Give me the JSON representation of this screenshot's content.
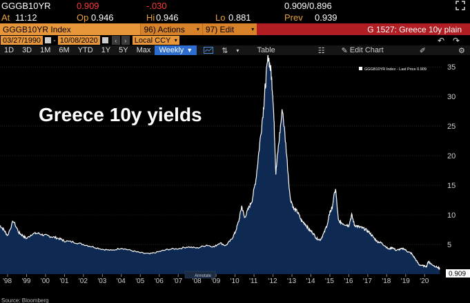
{
  "quote": {
    "ticker": "GGGB10YR",
    "last": "0.909",
    "change": "-.030",
    "bid_ask": "0.909/0.896",
    "time_label": "At",
    "time": "11:12",
    "open_label": "Op",
    "open": "0.946",
    "high_label": "Hi",
    "high": "0.946",
    "low_label": "Lo",
    "low": "0.881",
    "prev_label": "Prev",
    "prev": "0.939"
  },
  "toolbar": {
    "security": "GGGB10YR Index",
    "actions": "96) Actions",
    "edit": "97) Edit",
    "page_title": "G 1527: Greece 10y plain"
  },
  "range": {
    "start": "03/27/1990",
    "end": "10/08/2020",
    "currency": "Local CCY"
  },
  "tabs": [
    "1D",
    "3D",
    "1M",
    "6M",
    "YTD",
    "1Y",
    "5Y",
    "Max"
  ],
  "period": "Weekly",
  "tools": {
    "table": "Table",
    "edit_chart": "Edit Chart"
  },
  "colors": {
    "accent": "#e8963a",
    "title_red": "#b01e24",
    "series_fill": "#0e2a52",
    "line": "#ffffff"
  },
  "chart_data": {
    "type": "area",
    "title": "Greece 10y yields",
    "legend": "GGGB10YR Index - Last Price 0.909",
    "legend_position": "top-right",
    "annotation": "Annotate",
    "last_label": "0.909",
    "x_ticks": [
      "'98",
      "'99",
      "'00",
      "'01",
      "'02",
      "'03",
      "'04",
      "'05",
      "'06",
      "'07",
      "'08",
      "'09",
      "'10",
      "'11",
      "'12",
      "'13",
      "'14",
      "'15",
      "'16",
      "'17",
      "'18",
      "'19",
      "'20"
    ],
    "y_ticks": [
      5,
      10,
      15,
      20,
      25,
      30,
      35
    ],
    "ylim": [
      0,
      37
    ],
    "xlim": [
      1997.6,
      2020.9
    ],
    "x": [
      1997.6,
      1997.8,
      1998.0,
      1998.3,
      1998.6,
      1998.8,
      1999.0,
      1999.3,
      1999.6,
      1999.9,
      2000.2,
      2000.5,
      2000.8,
      2001.0,
      2001.5,
      2002.0,
      2002.5,
      2003.0,
      2003.5,
      2004.0,
      2004.5,
      2005.0,
      2005.5,
      2006.0,
      2006.5,
      2007.0,
      2007.5,
      2008.0,
      2008.5,
      2008.9,
      2009.2,
      2009.5,
      2009.8,
      2010.0,
      2010.2,
      2010.35,
      2010.5,
      2010.7,
      2010.9,
      2011.1,
      2011.3,
      2011.5,
      2011.6,
      2011.75,
      2011.9,
      2012.0,
      2012.1,
      2012.15,
      2012.3,
      2012.5,
      2012.7,
      2012.9,
      2013.1,
      2013.3,
      2013.5,
      2013.7,
      2013.9,
      2014.1,
      2014.3,
      2014.5,
      2014.7,
      2014.9,
      2015.0,
      2015.1,
      2015.3,
      2015.45,
      2015.6,
      2015.8,
      2016.0,
      2016.15,
      2016.3,
      2016.5,
      2016.7,
      2016.9,
      2017.1,
      2017.3,
      2017.5,
      2017.7,
      2017.9,
      2018.1,
      2018.3,
      2018.5,
      2018.7,
      2018.9,
      2019.1,
      2019.3,
      2019.5,
      2019.7,
      2019.9,
      2020.1,
      2020.2,
      2020.3,
      2020.5,
      2020.7,
      2020.8
    ],
    "values": [
      8.2,
      7.5,
      6.5,
      9.0,
      7.0,
      6.5,
      6.0,
      6.8,
      6.9,
      6.6,
      6.4,
      6.2,
      5.9,
      5.6,
      5.4,
      5.0,
      4.6,
      4.2,
      4.0,
      4.4,
      4.0,
      3.6,
      3.4,
      3.8,
      4.2,
      4.3,
      4.6,
      4.4,
      4.9,
      4.6,
      5.3,
      4.8,
      5.8,
      7.0,
      9.0,
      11.5,
      9.5,
      11.0,
      12.5,
      16.0,
      22.0,
      28.0,
      32.0,
      37.0,
      34.0,
      30.0,
      22.0,
      17.0,
      22.0,
      28.0,
      21.0,
      13.0,
      11.0,
      10.5,
      9.0,
      8.5,
      7.5,
      7.0,
      6.0,
      5.8,
      7.0,
      8.8,
      10.5,
      11.0,
      14.5,
      9.0,
      8.7,
      8.4,
      8.2,
      10.0,
      8.3,
      8.0,
      7.8,
      7.5,
      7.0,
      6.2,
      5.5,
      5.3,
      4.8,
      4.2,
      4.5,
      4.0,
      4.2,
      4.3,
      3.8,
      3.5,
      2.6,
      1.6,
      1.4,
      1.3,
      2.2,
      1.8,
      1.4,
      1.1,
      0.909
    ]
  },
  "footer": "Source: Bloomberg"
}
